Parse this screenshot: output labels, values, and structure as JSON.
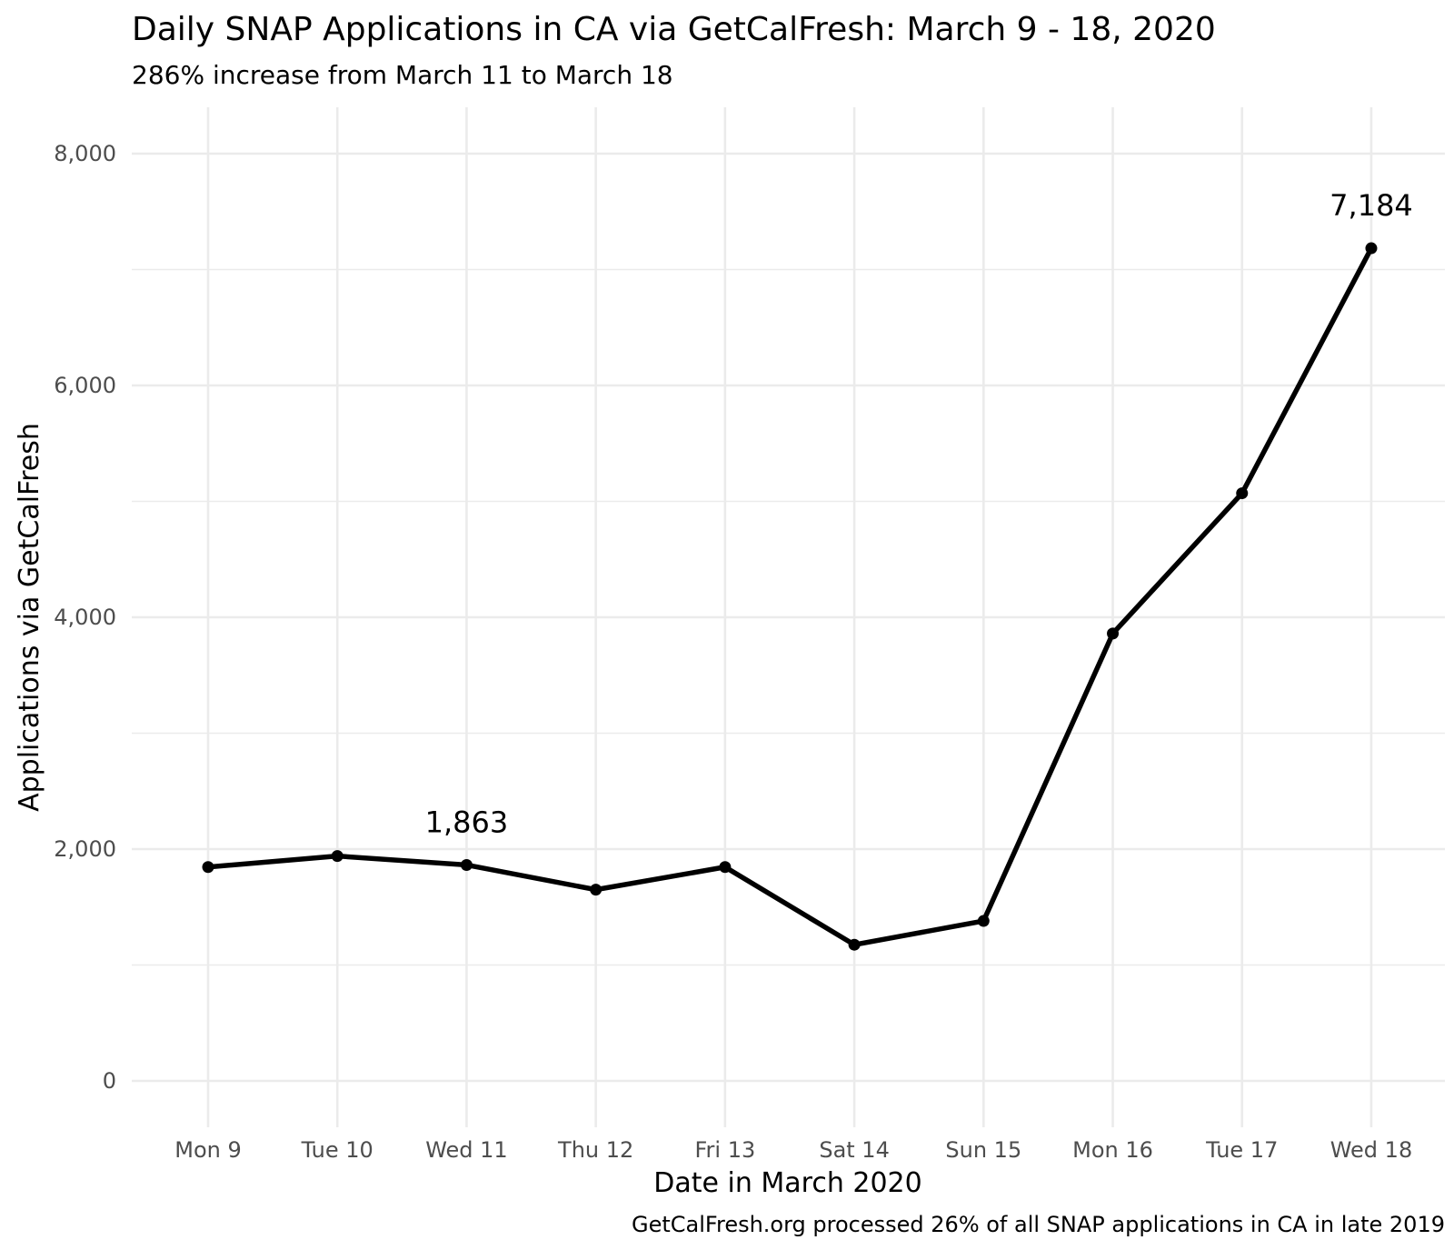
{
  "chart_data": {
    "type": "line",
    "title": "Daily SNAP Applications in CA via GetCalFresh: March 9 - 18, 2020",
    "subtitle": "286% increase from March 11 to March 18",
    "xlabel": "Date in March 2020",
    "ylabel": "Applications via GetCalFresh",
    "caption": "GetCalFresh.org processed 26% of all SNAP applications in CA in late 2019",
    "categories": [
      "Mon 9",
      "Tue 10",
      "Wed 11",
      "Thu 12",
      "Fri 13",
      "Sat 14",
      "Sun 15",
      "Mon 16",
      "Tue 17",
      "Wed 18"
    ],
    "series": [
      {
        "values": [
          1845,
          1940,
          1863,
          1650,
          1845,
          1175,
          1380,
          3860,
          5070,
          7184
        ]
      }
    ],
    "annotations": [
      {
        "category": "Wed 11",
        "text": "1,863"
      },
      {
        "category": "Wed 18",
        "text": "7,184"
      }
    ],
    "y_ticks": [
      0,
      2000,
      4000,
      6000,
      8000
    ],
    "y_tick_labels": [
      "0",
      "2,000",
      "4,000",
      "6,000",
      "8,000"
    ],
    "ylim": [
      -400,
      8400
    ],
    "grid": true,
    "line_color": "#000000",
    "grid_color": "#ebebeb",
    "text_color": "#000000",
    "tick_label_color": "#4d4d4d"
  }
}
